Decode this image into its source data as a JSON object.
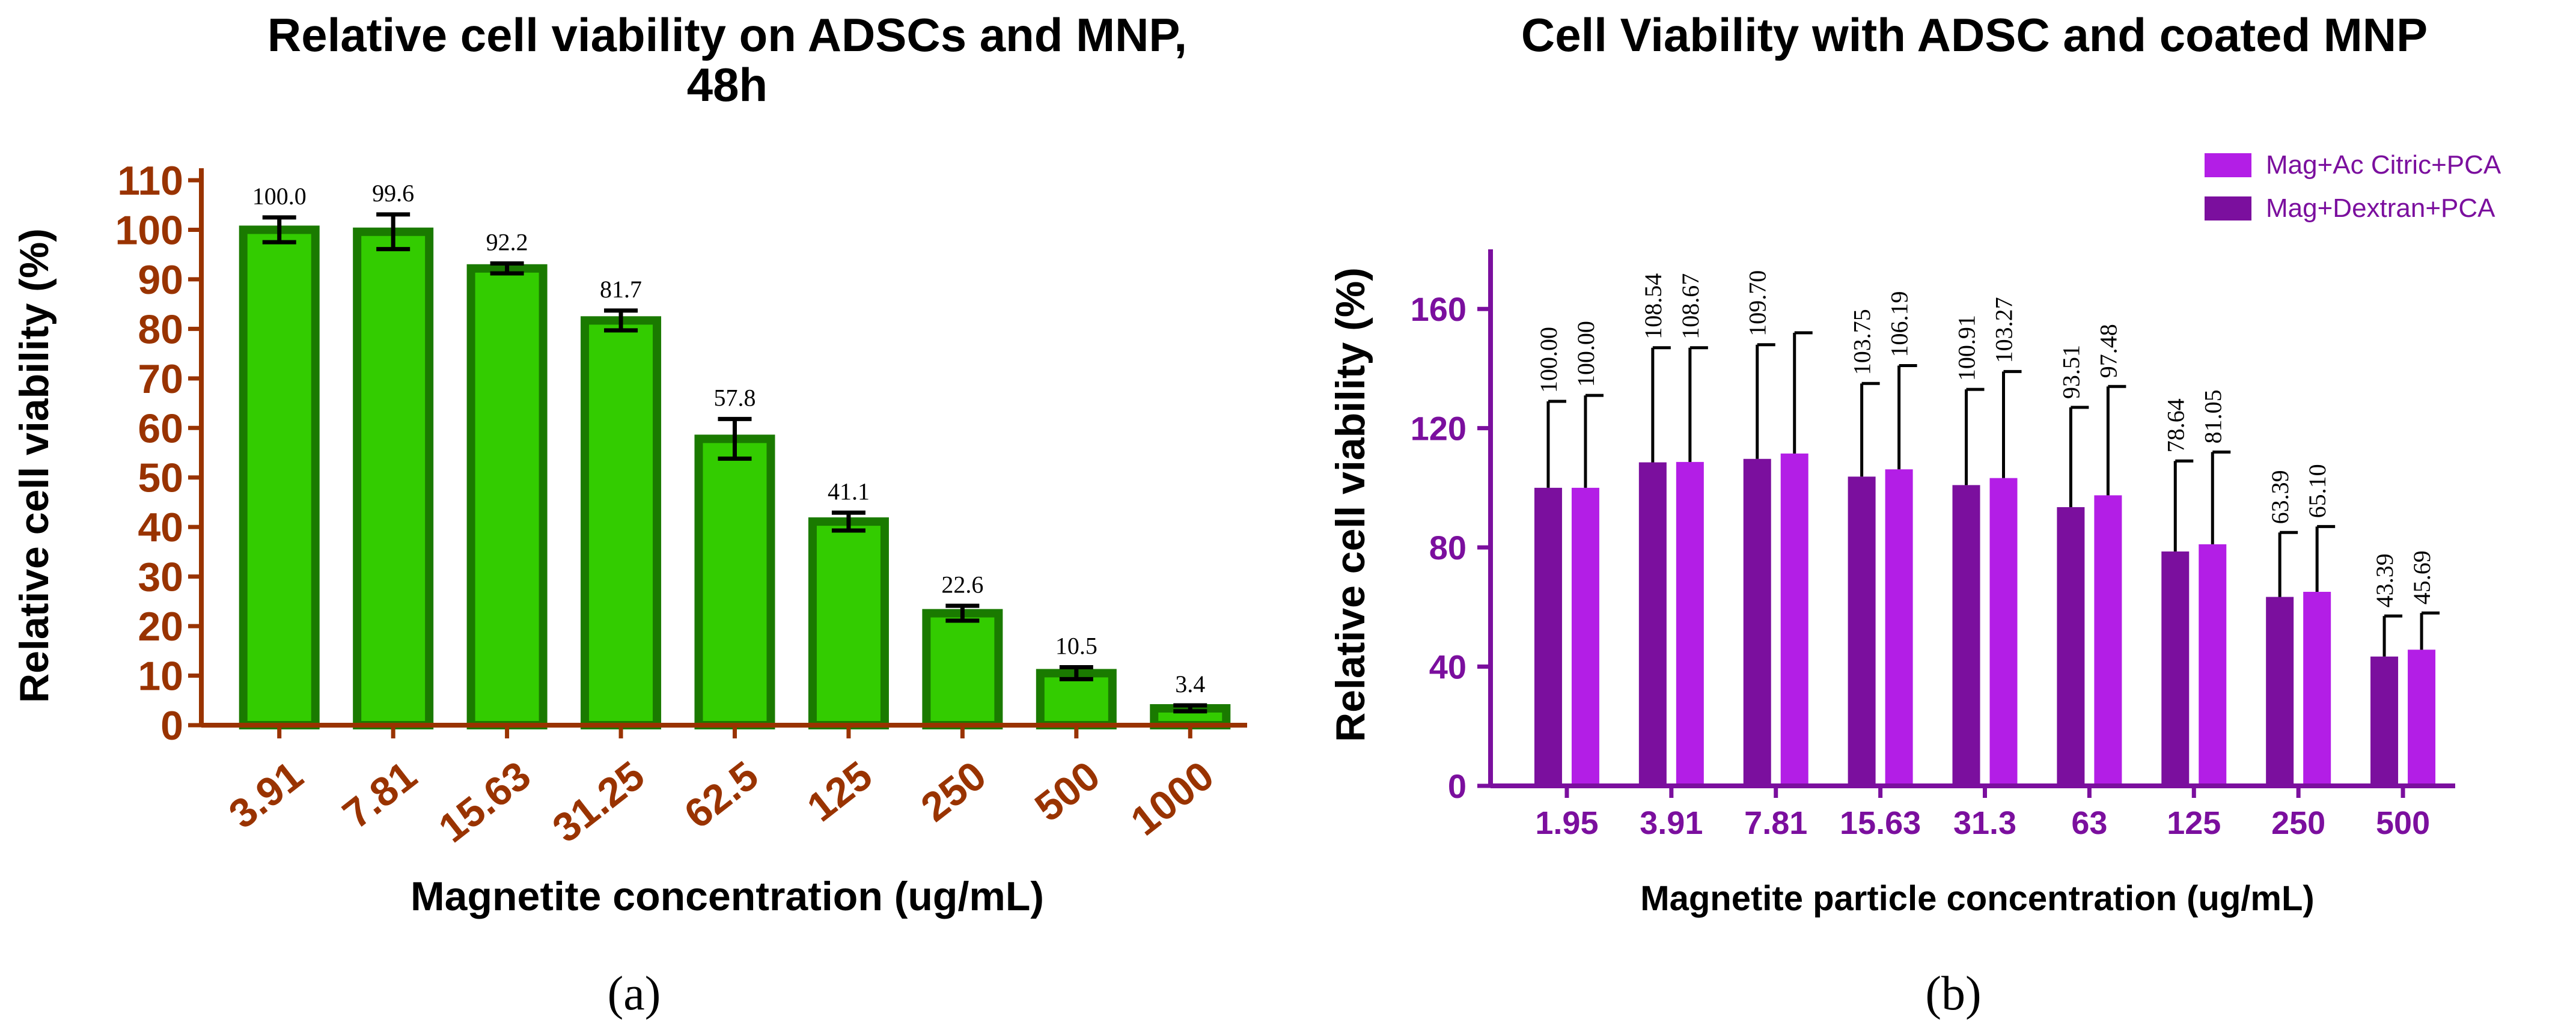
{
  "figure": {
    "panel_labels": [
      "(a)",
      "(b)"
    ]
  },
  "chart_data": [
    {
      "type": "bar",
      "title_lines": [
        "Relative cell viability on ADSCs and MNP,",
        "48h"
      ],
      "xlabel": "Magnetite concentration (ug/mL)",
      "ylabel": "Relative cell viability (%)",
      "categories": [
        "3.91",
        "7.81",
        "15.63",
        "31.25",
        "62.5",
        "125",
        "250",
        "500",
        "1000"
      ],
      "values": [
        100.0,
        99.6,
        92.2,
        81.7,
        57.8,
        41.1,
        22.6,
        10.5,
        3.4
      ],
      "value_labels": [
        "100.0",
        "99.6",
        "92.2",
        "81.7",
        "57.8",
        "41.1",
        "22.6",
        "10.5",
        "3.4"
      ],
      "errors": [
        2.5,
        3.5,
        1.0,
        2.0,
        4.0,
        1.8,
        1.5,
        1.2,
        0.6
      ],
      "ylim": [
        0,
        110
      ],
      "yticks": [
        0,
        10,
        20,
        30,
        40,
        50,
        60,
        70,
        80,
        90,
        100,
        110
      ],
      "colors": {
        "bar_fill": "#33cc00",
        "bar_edge": "#1a7a00",
        "axis": "#993300",
        "tick_label": "#993300",
        "text": "#000000"
      }
    },
    {
      "type": "bar",
      "title": "Cell Viability with ADSC and coated MNP",
      "xlabel": "Magnetite particle concentration (ug/mL)",
      "ylabel": "Relative cell viability (%)",
      "categories": [
        "1.95",
        "3.91",
        "7.81",
        "15.63",
        "31.3",
        "63",
        "125",
        "250",
        "500"
      ],
      "series": [
        {
          "name": "Mag+Dextran+PCA",
          "color": "#7b0f9e",
          "values": [
            100.0,
            108.54,
            109.7,
            103.75,
            100.91,
            93.51,
            78.64,
            63.39,
            43.39
          ],
          "value_labels": [
            "100.00",
            "108.54",
            "109.70",
            "103.75",
            "100.91",
            "93.51",
            "78.64",
            "63.39",
            "43.39"
          ],
          "error_tops": [
            129,
            147,
            148,
            135,
            133,
            127,
            109,
            85,
            57
          ]
        },
        {
          "name": "Mag+Ac Citric+PCA",
          "color": "#b31ee6",
          "values": [
            100.0,
            108.67,
            111.5,
            106.19,
            103.27,
            97.48,
            81.05,
            65.1,
            45.69
          ],
          "value_labels": [
            "100.00",
            "108.67",
            "",
            "106.19",
            "103.27",
            "97.48",
            "81.05",
            "65.10",
            "45.69"
          ],
          "error_tops": [
            131,
            147,
            152,
            141,
            139,
            134,
            112,
            87,
            58
          ]
        }
      ],
      "legend_order": [
        "Mag+Ac Citric+PCA",
        "Mag+Dextran+PCA"
      ],
      "legend_position": "top-right",
      "ylim": [
        0,
        180
      ],
      "yticks": [
        0,
        40,
        80,
        120,
        160
      ],
      "colors": {
        "axis": "#7b0f9e",
        "tick_label": "#7b0f9e",
        "legend_text": "#7b0f9e",
        "text": "#000000"
      }
    }
  ]
}
